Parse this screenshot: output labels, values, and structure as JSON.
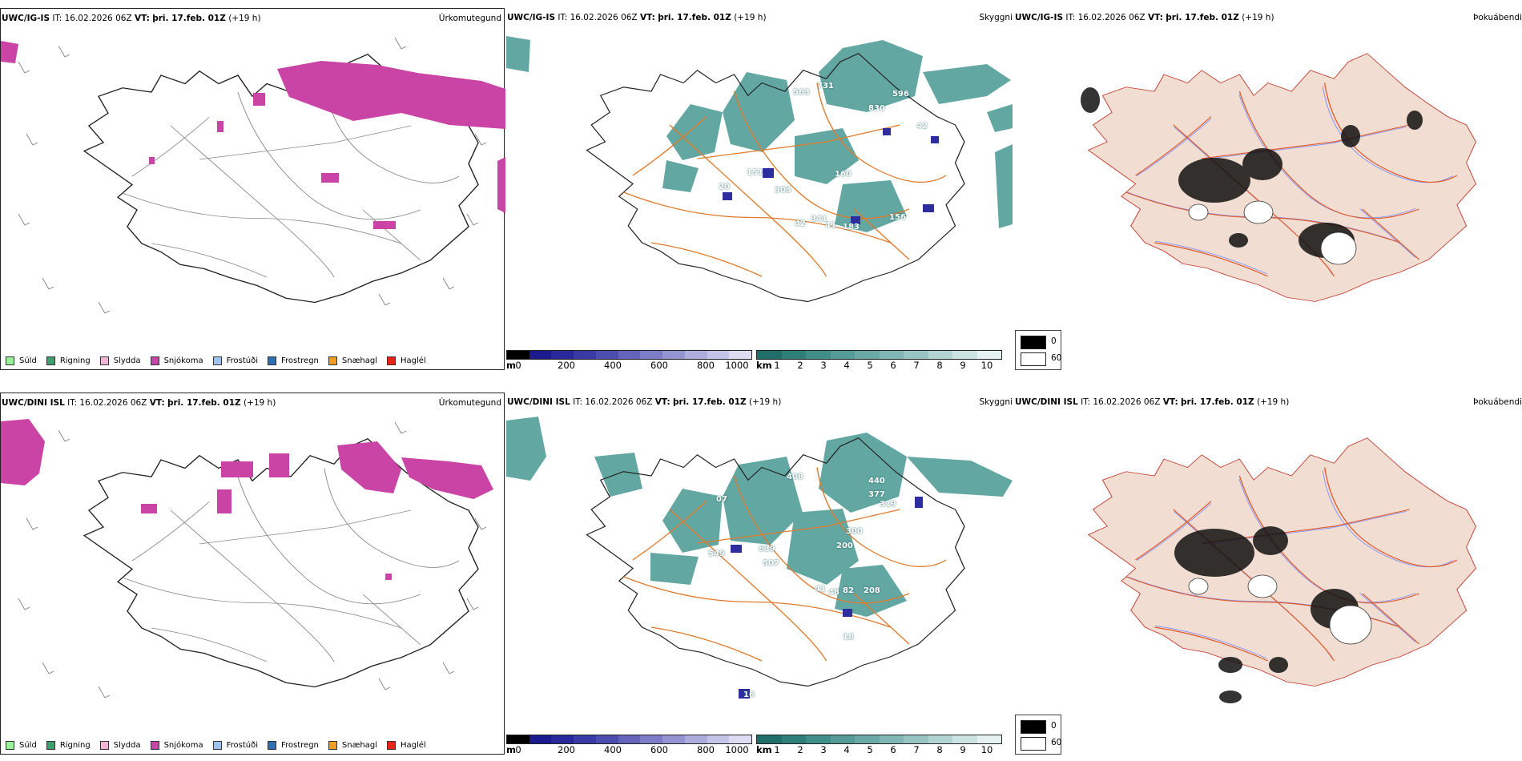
{
  "colors": {
    "snow": "#c944a4",
    "cloud_teal": "#2f8a84",
    "low_blue": "#2d2da0",
    "road_orange": "#e07a2a",
    "land_beige": "#f1ddd1",
    "river_blue": "#7f8fff"
  },
  "rows": [
    {
      "model": "UWC/IG-IS",
      "it_label": "IT:",
      "it_value": "16.02.2026 06Z",
      "vt_label": "VT:",
      "vt_value": "þri. 17.feb. 01Z",
      "lead": "(+19 h)",
      "panels": {
        "precip_title": "Úrkomutegund",
        "cloud_title": "Skyggni",
        "fog_title": "Þokuábendi"
      },
      "cloud_labels": [
        "563",
        "731",
        "596",
        "830",
        "42",
        "160",
        "20",
        "151",
        "303",
        "341",
        "156",
        "41",
        "42",
        "183"
      ]
    },
    {
      "model": "UWC/DINI ISL",
      "it_label": "IT:",
      "it_value": "16.02.2026 06Z",
      "vt_label": "VT:",
      "vt_value": "þri. 17.feb. 01Z",
      "lead": "(+19 h)",
      "panels": {
        "precip_title": "Úrkomutegund",
        "cloud_title": "Skyggni",
        "fog_title": "Þokuábendi"
      },
      "cloud_labels": [
        "408",
        "440",
        "377",
        "319",
        "07",
        "300",
        "200",
        "639",
        "549",
        "507",
        "41",
        "48",
        "82",
        "208",
        "16",
        "18"
      ]
    }
  ],
  "precip_legend": [
    {
      "label": "Súld",
      "color": "#9bf09b"
    },
    {
      "label": "Rigning",
      "color": "#3f9e6e"
    },
    {
      "label": "Slydda",
      "color": "#f3b4d8"
    },
    {
      "label": "Snjókoma",
      "color": "#c944a4"
    },
    {
      "label": "Frostúði",
      "color": "#9cc4ef"
    },
    {
      "label": "Frostregn",
      "color": "#2e6fb8"
    },
    {
      "label": "Snæhagl",
      "color": "#f29d25"
    },
    {
      "label": "Haglél",
      "color": "#e8221c"
    }
  ],
  "ceiling_bar": {
    "unit": "m",
    "ticks": [
      "0",
      "200",
      "400",
      "600",
      "800",
      "1000"
    ],
    "colors": [
      "#000000",
      "#1a1a8e",
      "#28289b",
      "#3a3aa6",
      "#4d4db0",
      "#6464bc",
      "#7c7cc7",
      "#9494d2",
      "#acacdd",
      "#c4c4e8",
      "#dcdcf2"
    ]
  },
  "visibility_bar": {
    "unit": "km",
    "ticks": [
      "1",
      "2",
      "3",
      "4",
      "5",
      "6",
      "7",
      "8",
      "9",
      "10"
    ],
    "colors": [
      "#1f6e69",
      "#2e7f7a",
      "#3f8e89",
      "#559c98",
      "#6aa9a6",
      "#80b7b4",
      "#98c5c3",
      "#b1d4d2",
      "#cbe3e2",
      "#e6f2f1"
    ]
  },
  "fog_legend": [
    {
      "label": "0",
      "color": "#000000"
    },
    {
      "label": "60",
      "color": "#ffffff"
    }
  ]
}
